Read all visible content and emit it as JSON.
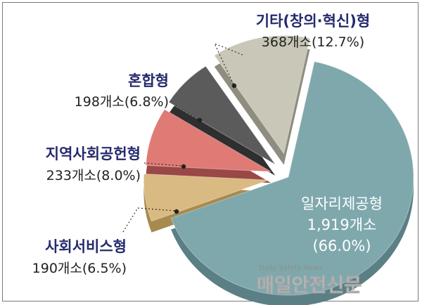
{
  "chart_data": {
    "type": "pie",
    "style": "3d-exploded",
    "series": [
      {
        "slices": [
          {
            "category": "일자리제공형",
            "count_label": "1,919개소",
            "percent_label": "(66.0%)",
            "value": 66.0,
            "color": "#7fa8ad",
            "side_color": "#5a7f85"
          },
          {
            "category": "사회서비스형",
            "value_label": "190개소(6.5%)",
            "value": 6.5,
            "color": "#d9ba82",
            "side_color": "#a88a4e"
          },
          {
            "category": "지역사회공헌형",
            "value_label": "233개소(8.0%)",
            "value": 8.0,
            "color": "#e07a75",
            "side_color": "#9a4747"
          },
          {
            "category": "혼합형",
            "value_label": "198개소(6.8%)",
            "value": 6.8,
            "color": "#5b5b5b",
            "side_color": "#2f2f2f"
          },
          {
            "category": "기타(창의·혁신)형",
            "value_label": "368개소(12.7%)",
            "value": 12.7,
            "color": "#c9c7b8",
            "side_color": "#8f8d80"
          }
        ]
      }
    ]
  },
  "watermark": {
    "english": "Daily Safety News",
    "korean": "매일안전신문"
  }
}
